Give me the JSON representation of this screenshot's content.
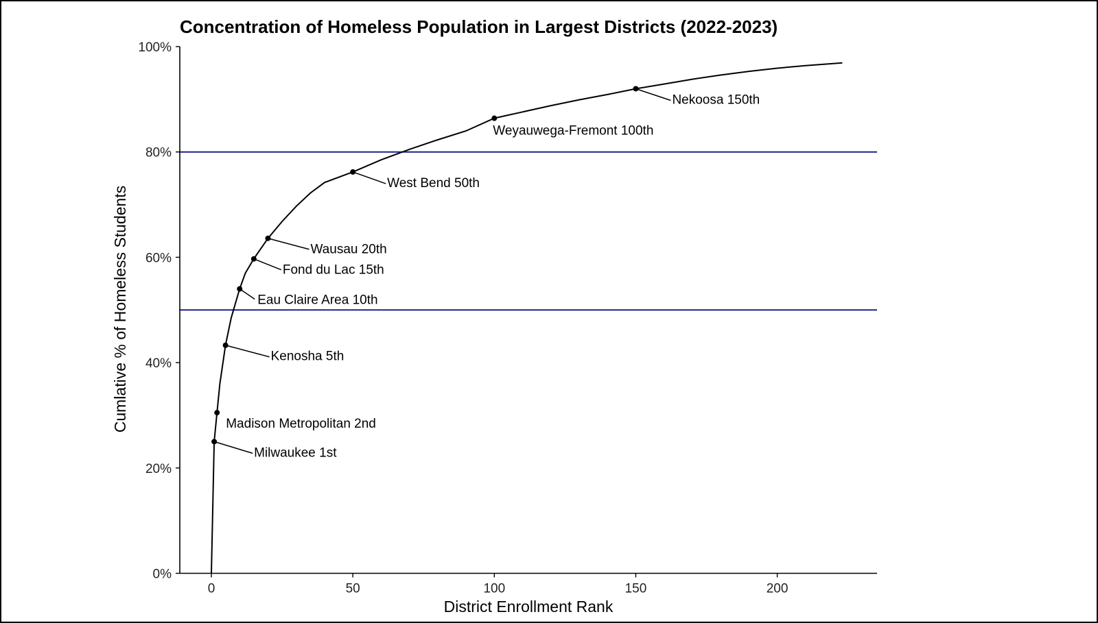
{
  "chart_data": {
    "type": "line",
    "title": "Concentration of Homeless Population in Largest Districts (2022-2023)",
    "xlabel": "District Enrollment Rank",
    "ylabel": "Cumlative % of Homeless Students",
    "xlim": [
      -11,
      235
    ],
    "ylim": [
      0,
      100
    ],
    "xticks": [
      0,
      50,
      100,
      150,
      200
    ],
    "xtick_labels": [
      "0",
      "50",
      "100",
      "150",
      "200"
    ],
    "yticks": [
      0,
      20,
      40,
      60,
      80,
      100
    ],
    "ytick_labels": [
      "0%",
      "20%",
      "40%",
      "60%",
      "80%",
      "100%"
    ],
    "grid": false,
    "line_color": "#000000",
    "reference_line_color": "#1f1f8f",
    "reference_lines_y": [
      50,
      80
    ],
    "series": [
      {
        "x": [
          0,
          1,
          2,
          3,
          5,
          7,
          10,
          12,
          15,
          20,
          25,
          30,
          35,
          40,
          50,
          60,
          70,
          80,
          90,
          100,
          110,
          120,
          130,
          140,
          150,
          160,
          170,
          180,
          190,
          200,
          210,
          223
        ],
        "y": [
          0,
          25,
          30.5,
          36,
          43.3,
          48.5,
          54,
          57,
          59.7,
          63.6,
          66.8,
          69.7,
          72.2,
          74.2,
          76.2,
          78.5,
          80.5,
          82.3,
          84,
          86.4,
          87.6,
          88.8,
          89.9,
          90.9,
          92,
          92.9,
          93.8,
          94.6,
          95.3,
          95.9,
          96.4,
          96.9
        ]
      }
    ],
    "annotations": [
      {
        "label": "Milwaukee 1st",
        "x": 1,
        "y": 25
      },
      {
        "label": "Madison Metropolitan 2nd",
        "x": 2,
        "y": 30.5
      },
      {
        "label": "Kenosha 5th",
        "x": 5,
        "y": 43.3
      },
      {
        "label": "Eau Claire Area 10th",
        "x": 10,
        "y": 54
      },
      {
        "label": "Fond du Lac 15th",
        "x": 15,
        "y": 59.7
      },
      {
        "label": "Wausau 20th",
        "x": 20,
        "y": 63.6
      },
      {
        "label": "West Bend 50th",
        "x": 50,
        "y": 76.2
      },
      {
        "label": "Weyauwega-Fremont 100th",
        "x": 100,
        "y": 86.4
      },
      {
        "label": "Nekoosa 150th",
        "x": 150,
        "y": 92
      }
    ]
  }
}
